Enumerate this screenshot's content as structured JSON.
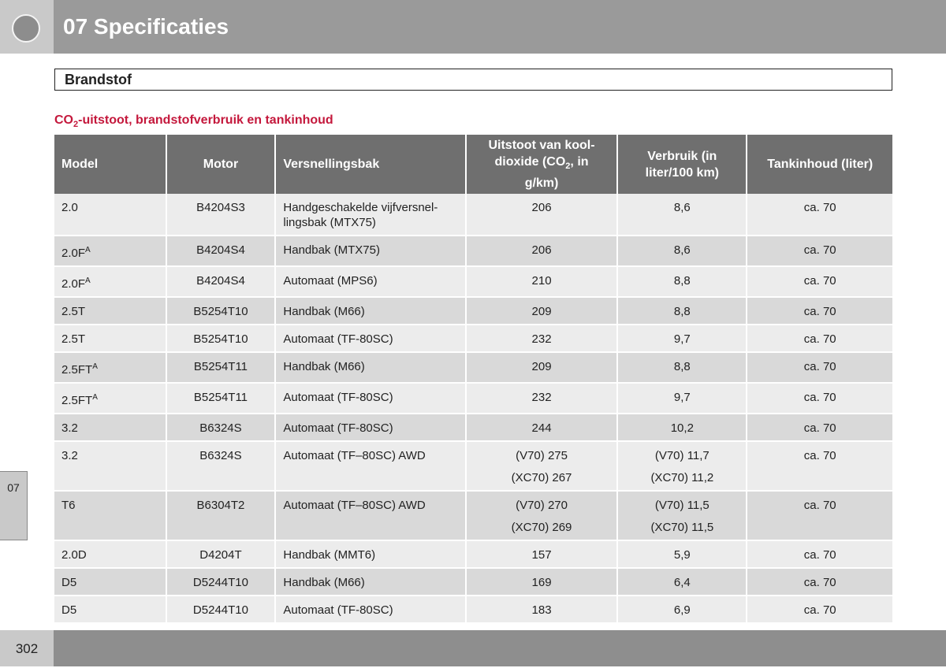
{
  "header": {
    "title": "07 Specificaties"
  },
  "side_tab": "07",
  "page_number": "302",
  "section": {
    "title": "Brandstof"
  },
  "subtitle": {
    "text": "CO",
    "sub": "2",
    "after": "-uitstoot, brandstofverbruik en tankinhoud"
  },
  "table": {
    "columns": [
      "Model",
      "Motor",
      "Versnellingsbak",
      {
        "text": "Uitstoot van kool-dioxide (CO",
        "sub": "2",
        "after": ", in g/km)"
      },
      "Verbruik (in liter/100 km)",
      "Tankinhoud (liter)"
    ],
    "rows": [
      {
        "model": "2.0",
        "motor": "B4204S3",
        "gearbox": "Handgeschakelde vijfversnel-lingsbak (MTX75)",
        "co2": [
          "206"
        ],
        "consumption": [
          "8,6"
        ],
        "tank": "ca. 70"
      },
      {
        "model": "2.0F",
        "model_sup": "A",
        "motor": "B4204S4",
        "gearbox": "Handbak (MTX75)",
        "co2": [
          "206"
        ],
        "consumption": [
          "8,6"
        ],
        "tank": "ca. 70"
      },
      {
        "model": "2.0F",
        "model_sup": "A",
        "motor": "B4204S4",
        "gearbox": "Automaat (MPS6)",
        "co2": [
          "210"
        ],
        "consumption": [
          "8,8"
        ],
        "tank": "ca. 70"
      },
      {
        "model": "2.5T",
        "motor": "B5254T10",
        "gearbox": "Handbak (M66)",
        "co2": [
          "209"
        ],
        "consumption": [
          "8,8"
        ],
        "tank": "ca. 70"
      },
      {
        "model": "2.5T",
        "motor": "B5254T10",
        "gearbox": "Automaat (TF-80SC)",
        "co2": [
          "232"
        ],
        "consumption": [
          "9,7"
        ],
        "tank": "ca. 70"
      },
      {
        "model": "2.5FT",
        "model_sup": "A",
        "motor": "B5254T11",
        "gearbox": "Handbak (M66)",
        "co2": [
          "209"
        ],
        "consumption": [
          "8,8"
        ],
        "tank": "ca. 70"
      },
      {
        "model": "2.5FT",
        "model_sup": "A",
        "motor": "B5254T11",
        "gearbox": "Automaat (TF-80SC)",
        "co2": [
          "232"
        ],
        "consumption": [
          "9,7"
        ],
        "tank": "ca. 70"
      },
      {
        "model": "3.2",
        "motor": "B6324S",
        "gearbox": "Automaat (TF-80SC)",
        "co2": [
          "244"
        ],
        "consumption": [
          "10,2"
        ],
        "tank": "ca. 70"
      },
      {
        "model": "3.2",
        "motor": "B6324S",
        "gearbox": "Automaat (TF–80SC) AWD",
        "co2": [
          "(V70) 275",
          "(XC70) 267"
        ],
        "consumption": [
          "(V70) 11,7",
          "(XC70) 11,2"
        ],
        "tank": "ca. 70"
      },
      {
        "model": "T6",
        "motor": "B6304T2",
        "gearbox": "Automaat (TF–80SC) AWD",
        "co2": [
          "(V70) 270",
          "(XC70) 269"
        ],
        "consumption": [
          "(V70) 11,5",
          "(XC70) 11,5"
        ],
        "tank": "ca. 70"
      },
      {
        "model": "2.0D",
        "motor": "D4204T",
        "gearbox": "Handbak (MMT6)",
        "co2": [
          "157"
        ],
        "consumption": [
          "5,9"
        ],
        "tank": "ca. 70"
      },
      {
        "model": "D5",
        "motor": "D5244T10",
        "gearbox": "Handbak (M66)",
        "co2": [
          "169"
        ],
        "consumption": [
          "6,4"
        ],
        "tank": "ca. 70"
      },
      {
        "model": "D5",
        "motor": "D5244T10",
        "gearbox": "Automaat (TF-80SC)",
        "co2": [
          "183"
        ],
        "consumption": [
          "6,9"
        ],
        "tank": "ca. 70"
      }
    ]
  }
}
